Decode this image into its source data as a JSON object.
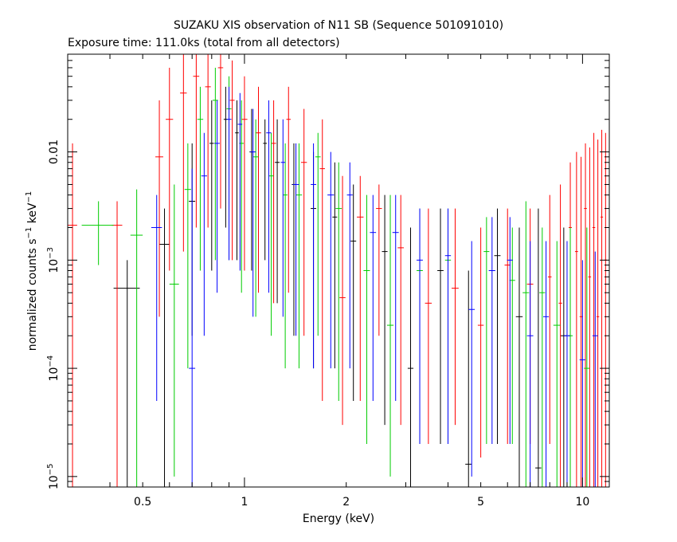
{
  "chart_data": {
    "type": "scatter",
    "title": "SUZAKU XIS observation of N11 SB (Sequence 501091010)",
    "subtitle": "Exposure time: 111.0ks (total from all detectors)",
    "xlabel": "Energy (keV)",
    "ylabel_main": "normalized counts s",
    "ylabel_sup1": "−1",
    "ylabel_mid": " keV",
    "ylabel_sup2": "−1",
    "x_scale": "log",
    "y_scale": "log",
    "xlim": [
      0.3,
      12
    ],
    "ylim": [
      8e-06,
      0.08
    ],
    "x_ticks": [
      {
        "v": 0.5,
        "label": "0.5"
      },
      {
        "v": 1,
        "label": "1"
      },
      {
        "v": 2,
        "label": "2"
      },
      {
        "v": 5,
        "label": "5"
      },
      {
        "v": 10,
        "label": "10"
      }
    ],
    "y_ticks": [
      {
        "v": 1e-05,
        "base": "10",
        "exp": "−5"
      },
      {
        "v": 0.0001,
        "base": "10",
        "exp": "−4"
      },
      {
        "v": 0.001,
        "base": "10",
        "exp": "−3"
      },
      {
        "v": 0.01,
        "base": "0.01",
        "exp": ""
      }
    ],
    "series": [
      {
        "color": "#000000",
        "points": [
          {
            "x": 0.45,
            "y": 0.00055,
            "xerr": 0.04,
            "ylo": 8e-06,
            "yhi": 0.001
          },
          {
            "x": 0.58,
            "y": 0.0014,
            "xerr": 0.02,
            "ylo": 8e-06,
            "yhi": 0.003
          },
          {
            "x": 0.7,
            "y": 0.0035,
            "xerr": 0.015,
            "ylo": 0.0002,
            "yhi": 0.012
          },
          {
            "x": 0.8,
            "y": 0.012,
            "xerr": 0.012,
            "ylo": 0.0008,
            "yhi": 0.03
          },
          {
            "x": 0.88,
            "y": 0.02,
            "xerr": 0.012,
            "ylo": 0.002,
            "yhi": 0.04
          },
          {
            "x": 0.95,
            "y": 0.015,
            "xerr": 0.012,
            "ylo": 0.001,
            "yhi": 0.03
          },
          {
            "x": 1.05,
            "y": 0.01,
            "xerr": 0.015,
            "ylo": 0.0008,
            "yhi": 0.025
          },
          {
            "x": 1.15,
            "y": 0.012,
            "xerr": 0.015,
            "ylo": 0.001,
            "yhi": 0.02
          },
          {
            "x": 1.25,
            "y": 0.008,
            "xerr": 0.02,
            "ylo": 0.0004,
            "yhi": 0.02
          },
          {
            "x": 1.4,
            "y": 0.005,
            "xerr": 0.02,
            "ylo": 0.0002,
            "yhi": 0.012
          },
          {
            "x": 1.6,
            "y": 0.003,
            "xerr": 0.03,
            "ylo": 0.0001,
            "yhi": 0.01
          },
          {
            "x": 1.85,
            "y": 0.0025,
            "xerr": 0.03,
            "ylo": 0.0001,
            "yhi": 0.008
          },
          {
            "x": 2.1,
            "y": 0.0015,
            "xerr": 0.04,
            "ylo": 5e-05,
            "yhi": 0.005
          },
          {
            "x": 2.6,
            "y": 0.0012,
            "xerr": 0.05,
            "ylo": 3e-05,
            "yhi": 0.004
          },
          {
            "x": 3.1,
            "y": 0.0001,
            "xerr": 0.06,
            "ylo": 8e-06,
            "yhi": 0.002
          },
          {
            "x": 3.8,
            "y": 0.0008,
            "xerr": 0.08,
            "ylo": 2e-05,
            "yhi": 0.003
          },
          {
            "x": 4.6,
            "y": 1.3e-05,
            "xerr": 0.1,
            "ylo": 8e-06,
            "yhi": 0.0008
          },
          {
            "x": 5.6,
            "y": 0.0011,
            "xerr": 0.12,
            "ylo": 2e-05,
            "yhi": 0.003
          },
          {
            "x": 6.5,
            "y": 0.0003,
            "xerr": 0.15,
            "ylo": 8e-06,
            "yhi": 0.002
          },
          {
            "x": 7.4,
            "y": 1.2e-05,
            "xerr": 0.15,
            "ylo": 8e-06,
            "yhi": 0.003
          },
          {
            "x": 8.8,
            "y": 0.0002,
            "xerr": 0.2,
            "ylo": 8e-06,
            "yhi": 0.002
          }
        ]
      },
      {
        "color": "#ff0000",
        "points": [
          {
            "x": 0.31,
            "y": 0.0021,
            "xerr": 0.01,
            "ylo": 8e-06,
            "yhi": 0.012
          },
          {
            "x": 0.42,
            "y": 0.0021,
            "xerr": 0.015,
            "ylo": 8e-06,
            "yhi": 0.0035
          },
          {
            "x": 0.56,
            "y": 0.009,
            "xerr": 0.015,
            "ylo": 0.0003,
            "yhi": 0.03
          },
          {
            "x": 0.6,
            "y": 0.02,
            "xerr": 0.015,
            "ylo": 0.0008,
            "yhi": 0.06
          },
          {
            "x": 0.66,
            "y": 0.035,
            "xerr": 0.015,
            "ylo": 0.0012,
            "yhi": 0.08
          },
          {
            "x": 0.72,
            "y": 0.05,
            "xerr": 0.015,
            "ylo": 0.002,
            "yhi": 0.08
          },
          {
            "x": 0.78,
            "y": 0.04,
            "xerr": 0.015,
            "ylo": 0.002,
            "yhi": 0.08
          },
          {
            "x": 0.85,
            "y": 0.06,
            "xerr": 0.015,
            "ylo": 0.003,
            "yhi": 0.08
          },
          {
            "x": 0.92,
            "y": 0.03,
            "xerr": 0.015,
            "ylo": 0.001,
            "yhi": 0.07
          },
          {
            "x": 1.0,
            "y": 0.02,
            "xerr": 0.02,
            "ylo": 0.0008,
            "yhi": 0.05
          },
          {
            "x": 1.1,
            "y": 0.015,
            "xerr": 0.02,
            "ylo": 0.0005,
            "yhi": 0.04
          },
          {
            "x": 1.22,
            "y": 0.012,
            "xerr": 0.02,
            "ylo": 0.0004,
            "yhi": 0.03
          },
          {
            "x": 1.35,
            "y": 0.02,
            "xerr": 0.02,
            "ylo": 0.0005,
            "yhi": 0.04
          },
          {
            "x": 1.5,
            "y": 0.008,
            "xerr": 0.03,
            "ylo": 0.0002,
            "yhi": 0.025
          },
          {
            "x": 1.7,
            "y": 0.007,
            "xerr": 0.03,
            "ylo": 5e-05,
            "yhi": 0.02
          },
          {
            "x": 1.95,
            "y": 0.00045,
            "xerr": 0.04,
            "ylo": 3e-05,
            "yhi": 0.006
          },
          {
            "x": 2.2,
            "y": 0.0025,
            "xerr": 0.05,
            "ylo": 5e-05,
            "yhi": 0.006
          },
          {
            "x": 2.5,
            "y": 0.003,
            "xerr": 0.05,
            "ylo": 0.0002,
            "yhi": 0.005
          },
          {
            "x": 2.9,
            "y": 0.0013,
            "xerr": 0.06,
            "ylo": 3e-05,
            "yhi": 0.004
          },
          {
            "x": 3.5,
            "y": 0.0004,
            "xerr": 0.08,
            "ylo": 2e-05,
            "yhi": 0.003
          },
          {
            "x": 4.2,
            "y": 0.00055,
            "xerr": 0.1,
            "ylo": 3e-05,
            "yhi": 0.003
          },
          {
            "x": 5.0,
            "y": 0.00025,
            "xerr": 0.1,
            "ylo": 1.5e-05,
            "yhi": 0.002
          },
          {
            "x": 6.0,
            "y": 0.0009,
            "xerr": 0.12,
            "ylo": 2e-05,
            "yhi": 0.003
          },
          {
            "x": 7.0,
            "y": 0.0006,
            "xerr": 0.15,
            "ylo": 2e-05,
            "yhi": 0.003
          },
          {
            "x": 8.0,
            "y": 0.0007,
            "xerr": 0.1,
            "ylo": 2e-05,
            "yhi": 0.004
          },
          {
            "x": 8.6,
            "y": 0.0004,
            "xerr": 0.1,
            "ylo": 8e-06,
            "yhi": 0.005
          },
          {
            "x": 9.2,
            "y": 0.002,
            "xerr": 0.1,
            "ylo": 8e-06,
            "yhi": 0.008
          },
          {
            "x": 9.6,
            "y": 0.0012,
            "xerr": 0.1,
            "ylo": 8e-06,
            "yhi": 0.01
          },
          {
            "x": 9.9,
            "y": 0.0003,
            "xerr": 0.1,
            "ylo": 8e-06,
            "yhi": 0.009
          },
          {
            "x": 10.2,
            "y": 0.003,
            "xerr": 0.1,
            "ylo": 8e-06,
            "yhi": 0.012
          },
          {
            "x": 10.5,
            "y": 0.0007,
            "xerr": 0.1,
            "ylo": 8e-06,
            "yhi": 0.011
          },
          {
            "x": 10.8,
            "y": 0.002,
            "xerr": 0.1,
            "ylo": 8e-06,
            "yhi": 0.015
          },
          {
            "x": 11.1,
            "y": 0.0003,
            "xerr": 0.1,
            "ylo": 8e-06,
            "yhi": 0.013
          },
          {
            "x": 11.4,
            "y": 0.0025,
            "xerr": 0.1,
            "ylo": 8e-06,
            "yhi": 0.016
          },
          {
            "x": 11.7,
            "y": 0.001,
            "xerr": 0.1,
            "ylo": 8e-06,
            "yhi": 0.015
          }
        ]
      },
      {
        "color": "#00cc00",
        "points": [
          {
            "x": 0.37,
            "y": 0.0021,
            "xerr": 0.04,
            "ylo": 0.0009,
            "yhi": 0.0035
          },
          {
            "x": 0.48,
            "y": 0.0017,
            "xerr": 0.02,
            "ylo": 8e-06,
            "yhi": 0.0045
          },
          {
            "x": 0.62,
            "y": 0.0006,
            "xerr": 0.02,
            "ylo": 1e-05,
            "yhi": 0.005
          },
          {
            "x": 0.68,
            "y": 0.0045,
            "xerr": 0.015,
            "ylo": 0.0001,
            "yhi": 0.012
          },
          {
            "x": 0.74,
            "y": 0.02,
            "xerr": 0.015,
            "ylo": 0.0008,
            "yhi": 0.04
          },
          {
            "x": 0.82,
            "y": 0.03,
            "xerr": 0.015,
            "ylo": 0.001,
            "yhi": 0.06
          },
          {
            "x": 0.9,
            "y": 0.025,
            "xerr": 0.015,
            "ylo": 0.001,
            "yhi": 0.05
          },
          {
            "x": 0.98,
            "y": 0.012,
            "xerr": 0.015,
            "ylo": 0.0005,
            "yhi": 0.03
          },
          {
            "x": 1.08,
            "y": 0.009,
            "xerr": 0.02,
            "ylo": 0.0003,
            "yhi": 0.02
          },
          {
            "x": 1.2,
            "y": 0.006,
            "xerr": 0.02,
            "ylo": 0.0002,
            "yhi": 0.015
          },
          {
            "x": 1.32,
            "y": 0.004,
            "xerr": 0.02,
            "ylo": 0.0001,
            "yhi": 0.012
          },
          {
            "x": 1.45,
            "y": 0.004,
            "xerr": 0.03,
            "ylo": 0.0001,
            "yhi": 0.012
          },
          {
            "x": 1.65,
            "y": 0.009,
            "xerr": 0.03,
            "ylo": 0.0002,
            "yhi": 0.015
          },
          {
            "x": 1.9,
            "y": 0.003,
            "xerr": 0.04,
            "ylo": 5e-05,
            "yhi": 0.008
          },
          {
            "x": 2.3,
            "y": 0.0008,
            "xerr": 0.05,
            "ylo": 2e-05,
            "yhi": 0.004
          },
          {
            "x": 2.7,
            "y": 0.00025,
            "xerr": 0.06,
            "ylo": 1e-05,
            "yhi": 0.004
          },
          {
            "x": 3.3,
            "y": 0.0008,
            "xerr": 0.07,
            "ylo": 2e-05,
            "yhi": 0.003
          },
          {
            "x": 4.0,
            "y": 0.001,
            "xerr": 0.08,
            "ylo": 2e-05,
            "yhi": 0.003
          },
          {
            "x": 5.2,
            "y": 0.0012,
            "xerr": 0.1,
            "ylo": 2e-05,
            "yhi": 0.0025
          },
          {
            "x": 6.2,
            "y": 0.00065,
            "xerr": 0.12,
            "ylo": 2e-05,
            "yhi": 0.002
          },
          {
            "x": 6.8,
            "y": 0.0005,
            "xerr": 0.15,
            "ylo": 8e-06,
            "yhi": 0.0035
          },
          {
            "x": 7.6,
            "y": 0.0005,
            "xerr": 0.15,
            "ylo": 8e-06,
            "yhi": 0.002
          },
          {
            "x": 8.4,
            "y": 0.00025,
            "xerr": 0.2,
            "ylo": 8e-06,
            "yhi": 0.0015
          },
          {
            "x": 9.2,
            "y": 0.0002,
            "xerr": 0.15,
            "ylo": 8e-06,
            "yhi": 0.002
          },
          {
            "x": 10.3,
            "y": 0.0001,
            "xerr": 0.2,
            "ylo": 8e-06,
            "yhi": 0.002
          }
        ]
      },
      {
        "color": "#0000ff",
        "points": [
          {
            "x": 0.55,
            "y": 0.002,
            "xerr": 0.02,
            "ylo": 5e-05,
            "yhi": 0.004
          },
          {
            "x": 0.7,
            "y": 0.0001,
            "xerr": 0.015,
            "ylo": 8e-06,
            "yhi": 0.007
          },
          {
            "x": 0.76,
            "y": 0.006,
            "xerr": 0.015,
            "ylo": 0.0002,
            "yhi": 0.015
          },
          {
            "x": 0.83,
            "y": 0.012,
            "xerr": 0.015,
            "ylo": 0.0005,
            "yhi": 0.03
          },
          {
            "x": 0.9,
            "y": 0.02,
            "xerr": 0.015,
            "ylo": 0.001,
            "yhi": 0.04
          },
          {
            "x": 0.97,
            "y": 0.018,
            "xerr": 0.015,
            "ylo": 0.0008,
            "yhi": 0.035
          },
          {
            "x": 1.06,
            "y": 0.01,
            "xerr": 0.02,
            "ylo": 0.0003,
            "yhi": 0.025
          },
          {
            "x": 1.18,
            "y": 0.015,
            "xerr": 0.02,
            "ylo": 0.0005,
            "yhi": 0.03
          },
          {
            "x": 1.3,
            "y": 0.008,
            "xerr": 0.02,
            "ylo": 0.0003,
            "yhi": 0.02
          },
          {
            "x": 1.42,
            "y": 0.005,
            "xerr": 0.03,
            "ylo": 0.0002,
            "yhi": 0.012
          },
          {
            "x": 1.6,
            "y": 0.005,
            "xerr": 0.03,
            "ylo": 0.0001,
            "yhi": 0.012
          },
          {
            "x": 1.8,
            "y": 0.004,
            "xerr": 0.04,
            "ylo": 0.0001,
            "yhi": 0.01
          },
          {
            "x": 2.05,
            "y": 0.004,
            "xerr": 0.04,
            "ylo": 0.0001,
            "yhi": 0.008
          },
          {
            "x": 2.4,
            "y": 0.0018,
            "xerr": 0.05,
            "ylo": 5e-05,
            "yhi": 0.004
          },
          {
            "x": 2.8,
            "y": 0.0018,
            "xerr": 0.06,
            "ylo": 5e-05,
            "yhi": 0.004
          },
          {
            "x": 3.3,
            "y": 0.001,
            "xerr": 0.07,
            "ylo": 2e-05,
            "yhi": 0.003
          },
          {
            "x": 4.0,
            "y": 0.0011,
            "xerr": 0.08,
            "ylo": 2e-05,
            "yhi": 0.003
          },
          {
            "x": 4.7,
            "y": 0.00035,
            "xerr": 0.1,
            "ylo": 1e-05,
            "yhi": 0.0015
          },
          {
            "x": 5.4,
            "y": 0.0008,
            "xerr": 0.12,
            "ylo": 2e-05,
            "yhi": 0.0025
          },
          {
            "x": 6.1,
            "y": 0.001,
            "xerr": 0.12,
            "ylo": 2e-05,
            "yhi": 0.0025
          },
          {
            "x": 7.0,
            "y": 0.0002,
            "xerr": 0.15,
            "ylo": 8e-06,
            "yhi": 0.0015
          },
          {
            "x": 7.8,
            "y": 0.0003,
            "xerr": 0.15,
            "ylo": 8e-06,
            "yhi": 0.0015
          },
          {
            "x": 9.0,
            "y": 0.0002,
            "xerr": 0.2,
            "ylo": 8e-06,
            "yhi": 0.0015
          },
          {
            "x": 10.0,
            "y": 0.00012,
            "xerr": 0.2,
            "ylo": 8e-06,
            "yhi": 0.001
          },
          {
            "x": 10.9,
            "y": 0.0002,
            "xerr": 0.2,
            "ylo": 8e-06,
            "yhi": 0.0012
          }
        ]
      }
    ]
  }
}
